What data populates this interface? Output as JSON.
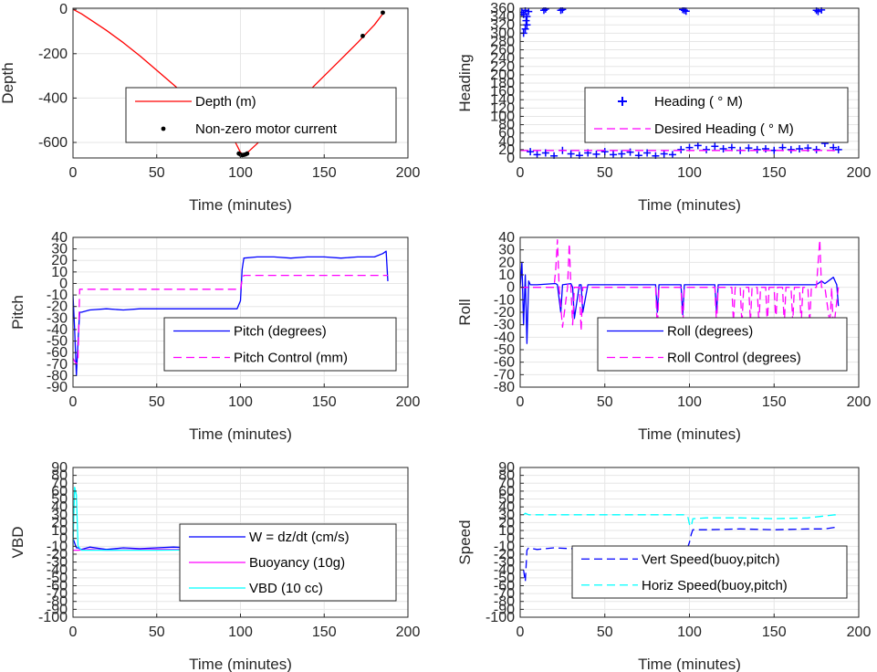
{
  "colors": {
    "depth": "#ff0000",
    "motor": "#000000",
    "heading": "#0000ff",
    "desired": "#ff00ff",
    "pitch": "#0000ff",
    "pitch_ctrl": "#ff00ff",
    "roll": "#0000ff",
    "roll_ctrl": "#ff00ff",
    "w": "#0000ff",
    "buoy": "#ff00ff",
    "vbd": "#00ffff",
    "vert": "#0000ff",
    "horiz": "#00ffff",
    "grid": "#e6e6e6",
    "axis": "#262626"
  },
  "chart_data": [
    {
      "id": "depth",
      "type": "line",
      "xlabel": "Time (minutes)",
      "ylabel": "Depth",
      "xlim": [
        0,
        200
      ],
      "ylim": [
        -670,
        5
      ],
      "xticks": [
        0,
        50,
        100,
        150,
        200
      ],
      "yticks": [
        0,
        -200,
        -400,
        -600
      ],
      "grid": true,
      "legend_position": "center",
      "series": [
        {
          "name": "Depth (m)",
          "style": "line",
          "color": "depth",
          "x": [
            0,
            5,
            10,
            20,
            30,
            40,
            50,
            60,
            70,
            80,
            90,
            97,
            100,
            102,
            105,
            110,
            120,
            130,
            140,
            150,
            160,
            170,
            180,
            186
          ],
          "y": [
            0,
            -20,
            -45,
            -95,
            -150,
            -210,
            -275,
            -340,
            -405,
            -470,
            -545,
            -600,
            -645,
            -655,
            -640,
            -605,
            -530,
            -455,
            -375,
            -300,
            -225,
            -150,
            -70,
            -10
          ]
        },
        {
          "name": "Non-zero motor current",
          "style": "dots",
          "color": "motor",
          "x": [
            99,
            100,
            101,
            102,
            103,
            104,
            173,
            185
          ],
          "y": [
            -650,
            -655,
            -657,
            -656,
            -654,
            -650,
            -120,
            -15
          ]
        }
      ]
    },
    {
      "id": "heading",
      "type": "scatter",
      "xlabel": "Time (minutes)",
      "ylabel": "Heading",
      "xlim": [
        0,
        200
      ],
      "ylim": [
        0,
        360
      ],
      "xticks": [
        0,
        50,
        100,
        150,
        200
      ],
      "yticks": [
        0,
        20,
        40,
        60,
        80,
        100,
        120,
        140,
        160,
        180,
        200,
        220,
        240,
        260,
        280,
        300,
        320,
        340,
        360
      ],
      "grid": true,
      "legend_position": "center-right",
      "series": [
        {
          "name": "Heading ( ° M)",
          "style": "plus",
          "color": "heading",
          "x": [
            1,
            2,
            3,
            3.5,
            4,
            5,
            2,
            3,
            4,
            14,
            15,
            24,
            25,
            96,
            97,
            98,
            175,
            176,
            178,
            6,
            10,
            15,
            20,
            25,
            30,
            35,
            40,
            45,
            50,
            55,
            60,
            65,
            70,
            75,
            80,
            85,
            90,
            95,
            100,
            105,
            110,
            115,
            120,
            125,
            130,
            135,
            140,
            145,
            150,
            155,
            160,
            165,
            170,
            175,
            180,
            185,
            188
          ],
          "y": [
            350,
            345,
            355,
            330,
            340,
            352,
            300,
            310,
            320,
            355,
            358,
            355,
            357,
            357,
            355,
            353,
            355,
            352,
            356,
            15,
            8,
            12,
            5,
            18,
            10,
            6,
            12,
            9,
            15,
            8,
            10,
            14,
            6,
            12,
            5,
            10,
            8,
            20,
            25,
            30,
            20,
            28,
            22,
            25,
            18,
            24,
            20,
            22,
            18,
            25,
            20,
            22,
            24,
            20,
            35,
            25,
            20
          ]
        },
        {
          "name": "Desired Heading (  ° M)",
          "style": "dash",
          "color": "desired",
          "x": [
            0,
            188
          ],
          "y": [
            18,
            18
          ]
        }
      ]
    },
    {
      "id": "pitch",
      "type": "line",
      "xlabel": "Time (minutes)",
      "ylabel": "Pitch",
      "xlim": [
        0,
        200
      ],
      "ylim": [
        -90,
        40
      ],
      "xticks": [
        0,
        50,
        100,
        150,
        200
      ],
      "yticks": [
        40,
        30,
        20,
        10,
        0,
        -10,
        -20,
        -30,
        -40,
        -50,
        -60,
        -70,
        -80,
        -90
      ],
      "grid": true,
      "legend_position": "center-right",
      "series": [
        {
          "name": "Pitch (degrees)",
          "style": "line",
          "color": "pitch",
          "x": [
            0,
            1,
            2,
            3,
            4,
            5,
            10,
            20,
            30,
            40,
            50,
            60,
            70,
            80,
            90,
            98,
            100,
            101,
            102,
            110,
            120,
            130,
            140,
            150,
            160,
            170,
            180,
            185,
            187,
            188
          ],
          "y": [
            -10,
            -40,
            -80,
            -50,
            -25,
            -25,
            -23,
            -22,
            -23,
            -22,
            -22,
            -22,
            -22,
            -22,
            -22,
            -22,
            -15,
            12,
            22,
            23,
            23,
            22,
            23,
            23,
            22,
            23,
            23,
            26,
            28,
            2
          ]
        },
        {
          "name": "Pitch Control (mm)",
          "style": "dash",
          "color": "pitch_ctrl",
          "x": [
            0,
            2,
            3,
            4,
            5,
            100,
            101,
            102,
            188
          ],
          "y": [
            -65,
            -70,
            -65,
            -5,
            -5,
            -5,
            3,
            7,
            7
          ]
        }
      ]
    },
    {
      "id": "roll",
      "type": "line",
      "xlabel": "Time (minutes)",
      "ylabel": "Roll",
      "xlim": [
        0,
        200
      ],
      "ylim": [
        -80,
        40
      ],
      "xticks": [
        0,
        50,
        100,
        150,
        200
      ],
      "yticks": [
        40,
        30,
        20,
        10,
        0,
        -10,
        -20,
        -30,
        -40,
        -50,
        -60,
        -70,
        -80
      ],
      "grid": true,
      "legend_position": "center-right",
      "series": [
        {
          "name": "Roll (degrees)",
          "style": "line",
          "color": "roll",
          "x": [
            0,
            1,
            2,
            3,
            4,
            5,
            6,
            10,
            20,
            21,
            22,
            24,
            25,
            30,
            31,
            32,
            35,
            36,
            37,
            40,
            50,
            60,
            70,
            80,
            81,
            82,
            95,
            96,
            97,
            100,
            110,
            115,
            116,
            117,
            120,
            130,
            140,
            150,
            160,
            170,
            175,
            178,
            180,
            185,
            187,
            188
          ],
          "y": [
            0,
            20,
            -30,
            10,
            -45,
            5,
            2,
            2,
            3,
            3,
            2,
            -20,
            2,
            3,
            0,
            -25,
            2,
            2,
            -20,
            2,
            2,
            2,
            2,
            2,
            -20,
            2,
            2,
            -22,
            2,
            2,
            2,
            2,
            -20,
            2,
            2,
            2,
            2,
            2,
            2,
            2,
            2,
            5,
            3,
            8,
            2,
            -15
          ]
        },
        {
          "name": "Roll Control (degrees)",
          "style": "dash",
          "color": "roll_ctrl",
          "x": [
            0,
            5,
            20,
            21,
            22,
            23,
            25,
            28,
            29,
            30,
            31,
            32,
            35,
            36,
            37,
            40,
            80,
            81,
            82,
            95,
            96,
            97,
            115,
            116,
            117,
            120,
            125,
            126,
            127,
            130,
            131,
            132,
            135,
            136,
            137,
            140,
            141,
            142,
            145,
            146,
            147,
            150,
            151,
            152,
            155,
            156,
            157,
            160,
            161,
            162,
            165,
            166,
            167,
            170,
            171,
            172,
            175,
            176,
            177,
            178,
            180,
            183,
            184,
            185,
            188
          ],
          "y": [
            0,
            0,
            0,
            15,
            38,
            0,
            -32,
            0,
            35,
            0,
            -30,
            0,
            0,
            -35,
            0,
            0,
            0,
            -35,
            0,
            0,
            -32,
            0,
            0,
            -30,
            0,
            0,
            0,
            -28,
            0,
            0,
            -30,
            0,
            0,
            -28,
            0,
            0,
            -30,
            0,
            0,
            -30,
            0,
            0,
            -28,
            0,
            0,
            -30,
            0,
            0,
            -28,
            0,
            0,
            -30,
            0,
            0,
            -30,
            0,
            0,
            20,
            38,
            0,
            0,
            -30,
            0,
            -35,
            0
          ]
        }
      ]
    },
    {
      "id": "vbd",
      "type": "line",
      "xlabel": "Time (minutes)",
      "ylabel": "VBD",
      "xlim": [
        0,
        200
      ],
      "ylim": [
        -100,
        90
      ],
      "xticks": [
        0,
        50,
        100,
        150,
        200
      ],
      "yticks": [
        90,
        80,
        70,
        60,
        50,
        40,
        30,
        20,
        10,
        0,
        -10,
        -20,
        -30,
        -40,
        -50,
        -60,
        -70,
        -80,
        -90,
        -100
      ],
      "grid": true,
      "legend_position": "center-right",
      "series": [
        {
          "name": "W = dz/dt (cm/s)",
          "style": "line",
          "color": "w",
          "x": [
            0,
            2,
            3,
            5,
            10,
            20,
            30,
            40,
            50,
            60,
            70,
            80,
            90,
            99,
            100,
            101,
            102,
            110,
            120,
            130,
            140,
            150,
            160,
            170,
            180,
            186,
            188
          ],
          "y": [
            0,
            -12,
            -12,
            -14,
            -11,
            -14,
            -12,
            -13,
            -12,
            -11,
            -12,
            -13,
            -12,
            -11,
            -4,
            6,
            11,
            11,
            10,
            11,
            11,
            11,
            12,
            11,
            12,
            14,
            10
          ]
        },
        {
          "name": "Buoyancy (10g)",
          "style": "line",
          "color": "buoy",
          "x": [
            0,
            3,
            10,
            20,
            50,
            100,
            101,
            102,
            110,
            150,
            188
          ],
          "y": [
            -15,
            -15,
            -14,
            -15,
            -14,
            -14,
            5,
            12,
            12,
            12,
            12
          ]
        },
        {
          "name": "VBD (10 cc)",
          "style": "line",
          "color": "vbd",
          "x": [
            0,
            1,
            2,
            3,
            5,
            50,
            100,
            101,
            102,
            110,
            150,
            188
          ],
          "y": [
            -10,
            65,
            55,
            -10,
            -15,
            -15,
            -14,
            5,
            12,
            12,
            12,
            12
          ]
        }
      ]
    },
    {
      "id": "speed",
      "type": "line",
      "xlabel": "Time (minutes)",
      "ylabel": "Speed",
      "xlim": [
        0,
        200
      ],
      "ylim": [
        -100,
        90
      ],
      "xticks": [
        0,
        50,
        100,
        150,
        200
      ],
      "yticks": [
        90,
        80,
        70,
        60,
        50,
        40,
        30,
        20,
        10,
        0,
        -10,
        -20,
        -30,
        -40,
        -50,
        -60,
        -70,
        -80,
        -90,
        -100
      ],
      "grid": true,
      "legend_position": "center-right",
      "series": [
        {
          "name": "Vert Speed(buoy,pitch)",
          "style": "dash",
          "color": "vert",
          "x": [
            2,
            3,
            4,
            5,
            10,
            20,
            30,
            50,
            70,
            90,
            99,
            100,
            101,
            102,
            110,
            130,
            150,
            170,
            180,
            186,
            188
          ],
          "y": [
            -40,
            -55,
            -15,
            -12,
            -14,
            -12,
            -13,
            -12,
            -12,
            -12,
            -11,
            -5,
            5,
            11,
            11,
            12,
            11,
            12,
            12,
            14,
            13
          ]
        },
        {
          "name": "Horiz Speed(buoy,pitch)",
          "style": "dash",
          "color": "horiz",
          "x": [
            2,
            3,
            5,
            20,
            50,
            90,
            97,
            99,
            100,
            101,
            102,
            110,
            130,
            150,
            170,
            186,
            188
          ],
          "y": [
            30,
            32,
            30,
            30,
            30,
            30,
            30,
            28,
            18,
            15,
            25,
            26,
            26,
            25,
            26,
            30,
            28
          ]
        }
      ]
    }
  ]
}
